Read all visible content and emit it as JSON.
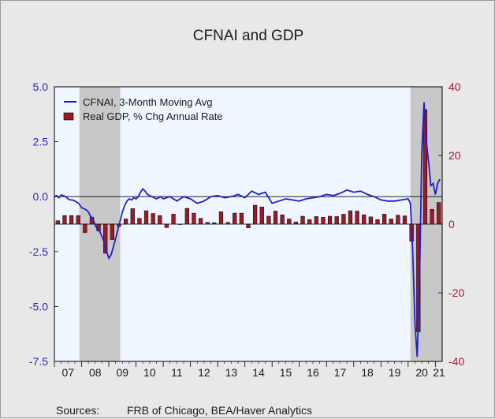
{
  "chart_data": {
    "type": "bar+line",
    "title": "CFNAI and GDP",
    "source_label": "Sources:",
    "source_text": "FRB of Chicago, BEA/Haver Analytics",
    "x_tick_labels": [
      "07",
      "08",
      "09",
      "10",
      "11",
      "12",
      "13",
      "14",
      "15",
      "16",
      "17",
      "18",
      "19",
      "20",
      "21"
    ],
    "x_range": [
      2007.0,
      2021.25
    ],
    "left_axis": {
      "ylim": [
        -7.5,
        5.0
      ],
      "ticks": [
        "5.0",
        "2.5",
        "0.0",
        "-2.5",
        "-5.0",
        "-7.5"
      ],
      "tick_values": [
        5.0,
        2.5,
        0.0,
        -2.5,
        -5.0,
        -7.5
      ],
      "color": "#1f1fc8"
    },
    "right_axis": {
      "ylim": [
        -40,
        40
      ],
      "ticks": [
        "40",
        "20",
        "0",
        "-20",
        "-40"
      ],
      "tick_values": [
        40,
        20,
        0,
        -20,
        -40
      ],
      "color": "#a01830"
    },
    "recessions": [
      [
        2007.917,
        2009.417
      ],
      [
        2020.083,
        2021.25
      ]
    ],
    "plot_background": "#f0f6ff",
    "recession_color": "#c8c8c8",
    "series": [
      {
        "name": "CFNAI, 3-Month Moving Avg",
        "axis": "left",
        "type": "line",
        "color": "#1f1fc8",
        "x": [
          2007.0,
          2007.083,
          2007.167,
          2007.25,
          2007.333,
          2007.417,
          2007.5,
          2007.583,
          2007.667,
          2007.75,
          2007.833,
          2007.917,
          2008.0,
          2008.083,
          2008.167,
          2008.25,
          2008.333,
          2008.417,
          2008.5,
          2008.583,
          2008.667,
          2008.75,
          2008.833,
          2008.917,
          2009.0,
          2009.083,
          2009.167,
          2009.25,
          2009.333,
          2009.417,
          2009.5,
          2009.583,
          2009.667,
          2009.75,
          2009.833,
          2009.917,
          2010.0,
          2010.083,
          2010.167,
          2010.25,
          2010.333,
          2010.417,
          2010.5,
          2010.583,
          2010.667,
          2010.75,
          2010.833,
          2010.917,
          2011.0,
          2011.25,
          2011.5,
          2011.75,
          2012.0,
          2012.25,
          2012.5,
          2012.75,
          2013.0,
          2013.25,
          2013.5,
          2013.75,
          2014.0,
          2014.25,
          2014.5,
          2014.75,
          2015.0,
          2015.25,
          2015.5,
          2015.75,
          2016.0,
          2016.25,
          2016.5,
          2016.75,
          2017.0,
          2017.25,
          2017.5,
          2017.75,
          2018.0,
          2018.25,
          2018.5,
          2018.75,
          2019.0,
          2019.25,
          2019.5,
          2019.75,
          2020.0,
          2020.083,
          2020.167,
          2020.25,
          2020.333,
          2020.417,
          2020.5,
          2020.583,
          2020.667,
          2020.75,
          2020.833,
          2020.917,
          2021.0,
          2021.083,
          2021.167
        ],
        "values": [
          0.0,
          0.05,
          -0.05,
          0.08,
          0.05,
          0.0,
          -0.1,
          -0.15,
          -0.15,
          -0.2,
          -0.25,
          -0.35,
          -0.5,
          -0.55,
          -0.6,
          -0.7,
          -0.9,
          -1.0,
          -1.3,
          -1.5,
          -1.6,
          -1.8,
          -2.1,
          -2.5,
          -2.8,
          -2.65,
          -2.3,
          -1.9,
          -1.5,
          -1.1,
          -0.7,
          -0.4,
          -0.2,
          -0.1,
          -0.15,
          -0.05,
          -0.1,
          0.0,
          0.2,
          0.35,
          0.25,
          0.1,
          0.05,
          0.0,
          -0.05,
          -0.1,
          -0.05,
          0.0,
          -0.1,
          0.0,
          -0.2,
          0.0,
          -0.1,
          -0.3,
          -0.2,
          0.0,
          0.05,
          -0.05,
          0.0,
          0.1,
          -0.05,
          0.25,
          0.1,
          0.2,
          -0.3,
          -0.2,
          -0.1,
          -0.15,
          -0.2,
          -0.1,
          -0.05,
          0.0,
          0.1,
          0.05,
          0.15,
          0.3,
          0.2,
          0.25,
          0.1,
          0.0,
          -0.15,
          -0.2,
          -0.2,
          -0.15,
          -0.1,
          -0.3,
          -2.5,
          -5.8,
          -7.3,
          -4.0,
          2.0,
          4.3,
          2.5,
          1.6,
          0.5,
          0.6,
          0.1,
          0.6,
          0.8
        ]
      },
      {
        "name": "Real GDP, % Chg Annual Rate",
        "axis": "right",
        "type": "bar",
        "color": "#9b1a28",
        "x": [
          2007.125,
          2007.375,
          2007.625,
          2007.875,
          2008.125,
          2008.375,
          2008.625,
          2008.875,
          2009.125,
          2009.375,
          2009.625,
          2009.875,
          2010.125,
          2010.375,
          2010.625,
          2010.875,
          2011.125,
          2011.375,
          2011.625,
          2011.875,
          2012.125,
          2012.375,
          2012.625,
          2012.875,
          2013.125,
          2013.375,
          2013.625,
          2013.875,
          2014.125,
          2014.375,
          2014.625,
          2014.875,
          2015.125,
          2015.375,
          2015.625,
          2015.875,
          2016.125,
          2016.375,
          2016.625,
          2016.875,
          2017.125,
          2017.375,
          2017.625,
          2017.875,
          2018.125,
          2018.375,
          2018.625,
          2018.875,
          2019.125,
          2019.375,
          2019.625,
          2019.875,
          2020.125,
          2020.375,
          2020.625,
          2020.875,
          2021.125
        ],
        "values": [
          1.0,
          2.5,
          2.5,
          2.5,
          -2.5,
          2.0,
          -2.0,
          -8.5,
          -4.5,
          -0.7,
          1.5,
          4.5,
          1.7,
          3.9,
          3.1,
          2.5,
          -1.0,
          2.9,
          -0.1,
          4.6,
          3.2,
          1.7,
          0.5,
          0.4,
          3.6,
          0.5,
          3.2,
          3.2,
          -1.1,
          5.5,
          5.0,
          2.3,
          3.8,
          2.7,
          1.5,
          0.6,
          2.3,
          1.3,
          2.2,
          2.0,
          2.3,
          2.2,
          2.9,
          3.9,
          3.8,
          2.7,
          2.1,
          1.3,
          2.9,
          1.5,
          2.6,
          2.4,
          -5.0,
          -31.4,
          33.4,
          4.3,
          6.3
        ]
      }
    ]
  }
}
